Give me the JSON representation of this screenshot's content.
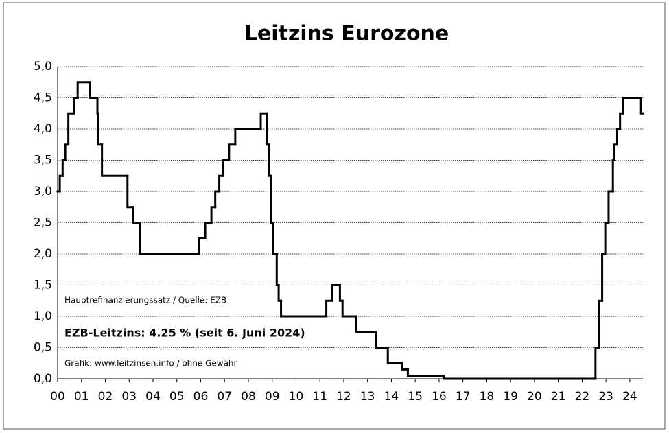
{
  "chart_data": {
    "type": "step",
    "title": "Leitzins Eurozone",
    "annotations": [
      "Hauptrefinanzierungssatz / Quelle: EZB",
      "EZB-Leitzins: 4.25 % (seit 6. Juni 2024)",
      "Grafik: www.leitzinsen.info / ohne Gewähr"
    ],
    "x": [
      0,
      0.09,
      0.21,
      0.32,
      0.45,
      0.69,
      0.84,
      1.36,
      1.67,
      1.7,
      1.86,
      2.93,
      3.18,
      3.44,
      5.93,
      6.19,
      6.45,
      6.61,
      6.78,
      6.95,
      7.19,
      7.45,
      8.52,
      8.79,
      8.86,
      8.94,
      9.05,
      9.19,
      9.27,
      9.37,
      11.27,
      11.52,
      11.84,
      11.95,
      12.52,
      13.35,
      13.85,
      14.44,
      14.69,
      16.2,
      22.56,
      22.71,
      22.84,
      22.97,
      23.11,
      23.29,
      23.34,
      23.47,
      23.59,
      23.72,
      24.47
    ],
    "values": [
      3.0,
      3.25,
      3.5,
      3.75,
      4.25,
      4.5,
      4.75,
      4.5,
      4.25,
      3.75,
      3.25,
      2.75,
      2.5,
      2.0,
      2.25,
      2.5,
      2.75,
      3.0,
      3.25,
      3.5,
      3.75,
      4.0,
      4.25,
      3.75,
      3.25,
      2.5,
      2.0,
      1.5,
      1.25,
      1.0,
      1.25,
      1.5,
      1.25,
      1.0,
      0.75,
      0.5,
      0.25,
      0.15,
      0.05,
      0.0,
      0.5,
      1.25,
      2.0,
      2.5,
      3.0,
      3.5,
      3.75,
      4.0,
      4.25,
      4.5,
      4.25
    ],
    "color": "#000000",
    "xlim": [
      0,
      24.55
    ],
    "xticks": [
      {
        "value": 0,
        "label": "00"
      },
      {
        "value": 1,
        "label": "01"
      },
      {
        "value": 2,
        "label": "02"
      },
      {
        "value": 3,
        "label": "03"
      },
      {
        "value": 4,
        "label": "04"
      },
      {
        "value": 5,
        "label": "05"
      },
      {
        "value": 6,
        "label": "06"
      },
      {
        "value": 7,
        "label": "07"
      },
      {
        "value": 8,
        "label": "08"
      },
      {
        "value": 9,
        "label": "09"
      },
      10,
      11,
      12,
      13,
      14,
      15,
      16,
      17,
      18,
      19,
      20,
      21,
      22,
      23,
      24
    ],
    "ylim": [
      0,
      5
    ],
    "yticks": [
      {
        "value": 0,
        "label": "0,0"
      },
      {
        "value": 0.5,
        "label": "0,5"
      },
      {
        "value": 1,
        "label": "1,0"
      },
      {
        "value": 1.5,
        "label": "1,5"
      },
      {
        "value": 2,
        "label": "2,0"
      },
      {
        "value": 2.5,
        "label": "2,5"
      },
      {
        "value": 3,
        "label": "3,0"
      },
      {
        "value": 3.5,
        "label": "3,5"
      },
      {
        "value": 4,
        "label": "4,0"
      },
      {
        "value": 4.5,
        "label": "4,5"
      },
      {
        "value": 5,
        "label": "5,0"
      }
    ],
    "grid": true
  }
}
